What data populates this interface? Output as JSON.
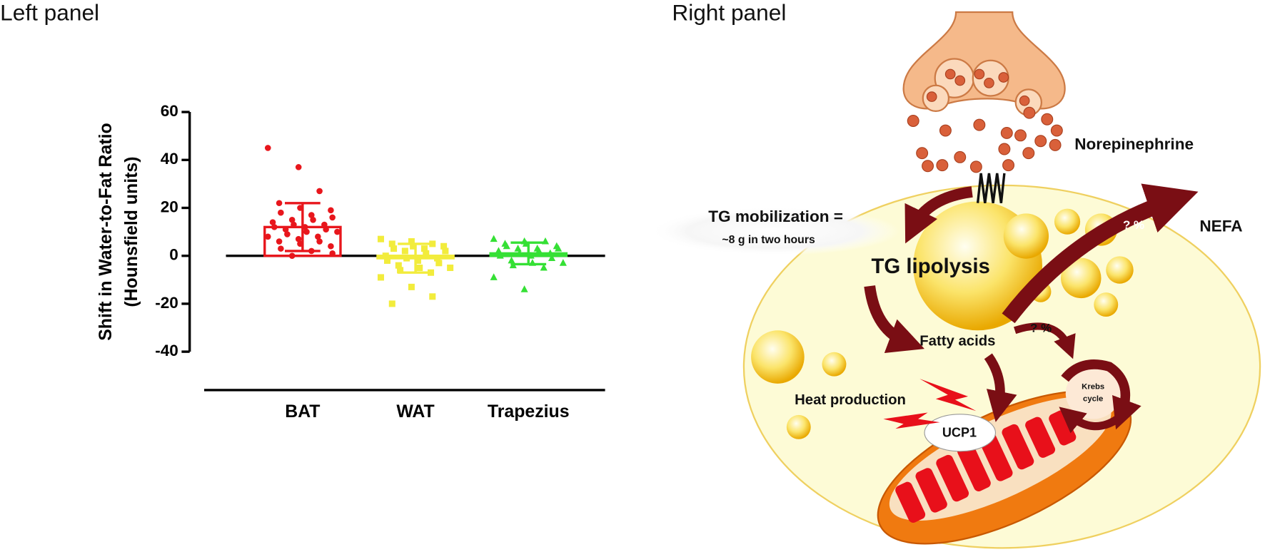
{
  "panel_titles": [
    "Left panel",
    "Right panel"
  ],
  "chart_data": {
    "type": "bar",
    "ylabel_lines": [
      "Shift in Water-to-Fat Ratio",
      "(Hounsfield units)"
    ],
    "categories": [
      "BAT",
      "WAT",
      "Trapezius"
    ],
    "values": [
      12,
      -1,
      1
    ],
    "errors": [
      10,
      6,
      4.5
    ],
    "points": [
      [
        45,
        37,
        27,
        22,
        20,
        19,
        18,
        17,
        16,
        15,
        15,
        14,
        13,
        13,
        12,
        12,
        11,
        11,
        10,
        10,
        9,
        8,
        8,
        7,
        6,
        6,
        5,
        4,
        3,
        2,
        1,
        0
      ],
      [
        7,
        6,
        5,
        5,
        4,
        4,
        3,
        3,
        2,
        2,
        1,
        0,
        -1,
        -1,
        -2,
        -2,
        -3,
        -4,
        -5,
        -5,
        -6,
        -7,
        -9,
        -13,
        -17,
        -20
      ],
      [
        7,
        6,
        6,
        5,
        5,
        4,
        4,
        3,
        3,
        3,
        2,
        2,
        1,
        1,
        0,
        0,
        -1,
        -2,
        -3,
        -3,
        -4,
        -5,
        -9,
        -14
      ]
    ],
    "colors": [
      "#e8161c",
      "#f2ec3c",
      "#35e035"
    ],
    "markers": [
      "circle",
      "square",
      "triangle"
    ],
    "ylim": [
      -56,
      60
    ],
    "yticks": [
      -40,
      -20,
      0,
      20,
      40,
      60
    ]
  },
  "diagram": {
    "labels": [
      "Norepinephrine",
      "NEFA",
      "? %",
      "TG mobilization =",
      "~8 g in two hours",
      "TG lipolysis",
      "Fatty acids",
      "? %",
      "Heat production",
      "UCP1",
      "Krebs",
      "cycle"
    ]
  }
}
